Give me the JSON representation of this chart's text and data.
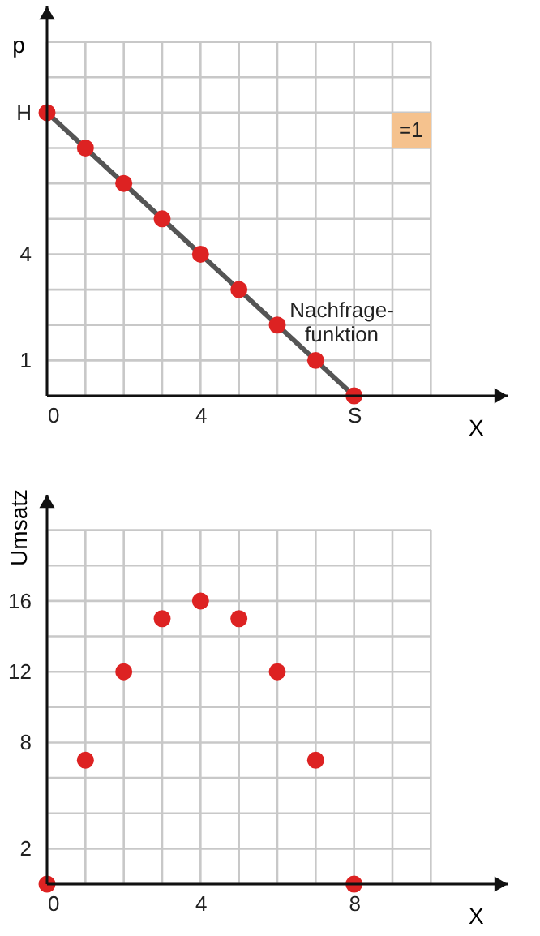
{
  "chart_data": [
    {
      "type": "line",
      "xlabel": "X",
      "ylabel": "p",
      "x": [
        0,
        1,
        2,
        3,
        4,
        5,
        6,
        7,
        8
      ],
      "series": [
        {
          "color": "#555555",
          "marker": "none",
          "values": [
            8,
            7,
            6,
            5,
            4,
            3,
            2,
            1,
            0
          ]
        },
        {
          "type": "scatter",
          "color": "#dd2222",
          "marker": "circle",
          "values": [
            8,
            7,
            6,
            5,
            4,
            3,
            2,
            1,
            0
          ]
        }
      ],
      "xlim": [
        0,
        12
      ],
      "xticks": [
        0,
        {
          "value": 1,
          "label": null
        },
        {
          "value": 2,
          "label": null
        },
        {
          "value": 3,
          "label": null
        },
        4,
        {
          "value": 5,
          "label": null
        },
        {
          "value": 6,
          "label": null
        },
        {
          "value": 7,
          "label": null
        },
        {
          "value": 8,
          "label": "S"
        },
        {
          "value": 9,
          "label": null
        },
        {
          "value": 10,
          "label": null
        }
      ],
      "ylim": [
        0,
        11
      ],
      "yticks": [
        {
          "value": 0,
          "label": null
        },
        1,
        {
          "value": 2,
          "label": null
        },
        {
          "value": 3,
          "label": null
        },
        4,
        {
          "value": 5,
          "label": null
        },
        {
          "value": 6,
          "label": null
        },
        {
          "value": 7,
          "label": null
        },
        {
          "value": 8,
          "label": "H"
        },
        {
          "value": 9,
          "label": null
        },
        {
          "value": 10,
          "label": null
        }
      ],
      "grid": true,
      "annotations": [
        "=1",
        "Nachfrage-\nfunktion"
      ]
    },
    {
      "type": "scatter",
      "xlabel": "X",
      "ylabel": "Umsatz",
      "x": [
        0,
        1,
        2,
        3,
        4,
        5,
        6,
        7,
        8
      ],
      "series": [
        {
          "color": "#dd2222",
          "values": [
            0,
            7,
            12,
            15,
            16,
            15,
            12,
            7,
            0
          ]
        }
      ],
      "marker": "circle",
      "xlim": [
        0,
        12
      ],
      "xticks": [
        0,
        {
          "value": 1,
          "label": null
        },
        {
          "value": 2,
          "label": null
        },
        {
          "value": 3,
          "label": null
        },
        4,
        {
          "value": 5,
          "label": null
        },
        {
          "value": 6,
          "label": null
        },
        {
          "value": 7,
          "label": null
        },
        8,
        {
          "value": 9,
          "label": null
        },
        {
          "value": 10,
          "label": null
        }
      ],
      "ylim": [
        0,
        22
      ],
      "yticks": [
        {
          "value": 0,
          "label": null
        },
        2,
        {
          "value": 4,
          "label": null
        },
        {
          "value": 6,
          "label": null
        },
        8,
        {
          "value": 10,
          "label": null
        },
        12,
        {
          "value": 14,
          "label": null
        },
        16,
        {
          "value": 18,
          "label": null
        },
        {
          "value": 20,
          "label": null
        }
      ],
      "grid": true
    }
  ]
}
